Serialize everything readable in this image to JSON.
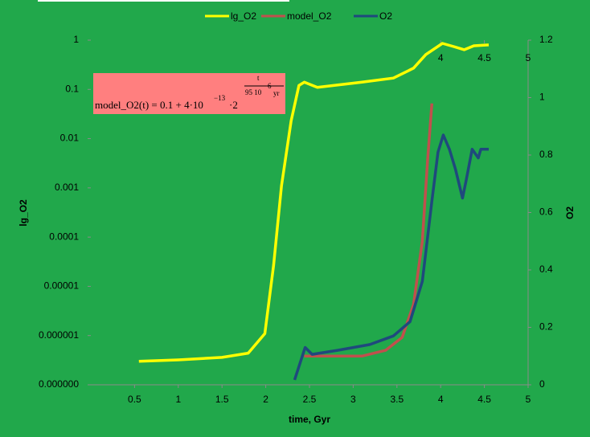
{
  "chart_data": {
    "type": "line",
    "x_label": "time, Gyr",
    "y_label": "lg_O2",
    "y2_label": "O2",
    "xlim": [
      0,
      5
    ],
    "xticks": [
      0.5,
      1,
      1.5,
      2,
      2.5,
      3,
      3.5,
      4,
      4.5,
      5
    ],
    "x2ticks": [
      4,
      4.5,
      5
    ],
    "ylim": [
      1e-07,
      1
    ],
    "log_y": true,
    "yticks": [
      1,
      0.1,
      0.01,
      0.001,
      0.0001,
      1e-05,
      1e-06,
      {
        "value": 1e-07,
        "label": "0.000000"
      }
    ],
    "y2lim": [
      0,
      1.2
    ],
    "y2ticks": [
      0,
      0.2,
      0.4,
      0.6,
      0.8,
      1,
      1.2
    ],
    "legend": "top",
    "annotation": {
      "base": "model_O2(t) = 0.1 + 4·10",
      "exp1": "−13",
      "mid": "·2",
      "num": "t",
      "den": "95 10",
      "den_exp": "6",
      "den_unit": "yr"
    },
    "series": [
      {
        "name": "lg_O2",
        "color": "#ffff00",
        "x": [
          0.55,
          1.0,
          1.5,
          1.8,
          1.99,
          2.09,
          2.18,
          2.29,
          2.38,
          2.44,
          2.59,
          3.1,
          3.46,
          3.69,
          3.83,
          4.02,
          4.15,
          4.27,
          4.38,
          4.55
        ],
        "values": [
          3e-07,
          3.2e-07,
          3.6e-07,
          4.4e-07,
          1.1e-06,
          2.7e-05,
          0.0011,
          0.023,
          0.12,
          0.14,
          0.11,
          0.14,
          0.17,
          0.27,
          0.51,
          0.86,
          0.74,
          0.64,
          0.77,
          0.8
        ]
      },
      {
        "name": "model_O2",
        "color": "#c0504d",
        "axis": "y2",
        "x": [
          2.44,
          3.1,
          3.37,
          3.56,
          3.69,
          3.79,
          3.85,
          3.9
        ],
        "values": [
          0.1,
          0.1,
          0.12,
          0.165,
          0.28,
          0.5,
          0.78,
          0.98
        ]
      },
      {
        "name": "O2",
        "color": "#1f497d",
        "axis": "y2",
        "x": [
          2.33,
          2.45,
          2.53,
          2.82,
          3.19,
          3.46,
          3.65,
          3.79,
          3.9,
          3.97,
          4.03,
          4.1,
          4.17,
          4.25,
          4.29,
          4.36,
          4.43,
          4.46,
          4.55
        ],
        "values": [
          0.017,
          0.13,
          0.106,
          0.12,
          0.14,
          0.17,
          0.22,
          0.36,
          0.64,
          0.81,
          0.87,
          0.82,
          0.75,
          0.65,
          0.71,
          0.82,
          0.79,
          0.82,
          0.82
        ]
      }
    ]
  }
}
